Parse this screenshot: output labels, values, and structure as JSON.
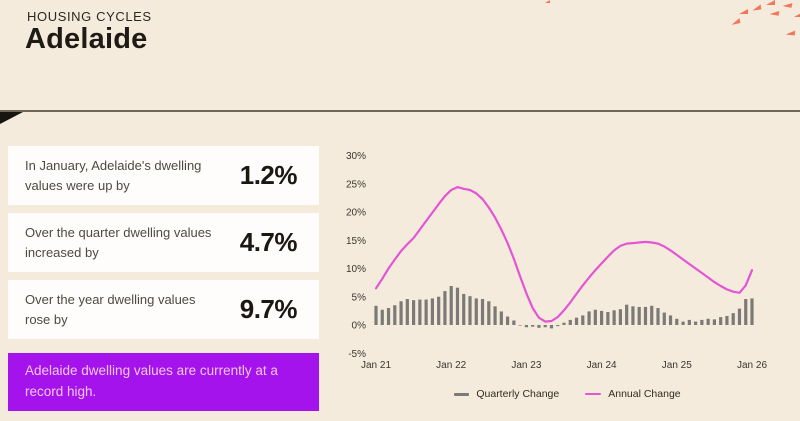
{
  "header": {
    "eyebrow": "HOUSING CYCLES",
    "title": "Adelaide"
  },
  "stats": [
    {
      "label": "In January, Adelaide's dwelling values were up by",
      "value": "1.2%"
    },
    {
      "label": "Over the quarter dwelling values increased by",
      "value": "4.7%"
    },
    {
      "label": "Over the year dwelling values rose by",
      "value": "9.7%"
    }
  ],
  "callout": "Adelaide dwelling values are currently at a record high.",
  "colors": {
    "background": "#f4ebdc",
    "card": "#fefdfb",
    "callout_bg": "#a513ec",
    "callout_text": "#f2c6ef",
    "bar": "#7b7a76",
    "line": "#e455d5",
    "coral_birds": "#f4765a",
    "divider": "#6f665a"
  },
  "chart_data": {
    "type": "bar+line",
    "x_start": "Jan 21",
    "x_interval": "monthly",
    "x_tick_labels": [
      "Jan 21",
      "Jan 22",
      "Jan 23",
      "Jan 24",
      "Jan 25",
      "Jan 26"
    ],
    "y_ticks": [
      30,
      25,
      20,
      15,
      10,
      5,
      0,
      -5
    ],
    "y_tick_labels": [
      "30%",
      "25%",
      "20%",
      "15%",
      "10%",
      "5%",
      "0%",
      "-5%"
    ],
    "ylim": [
      -5,
      30
    ],
    "grid": false,
    "legend": [
      "Quarterly Change",
      "Annual Change"
    ],
    "legend_position": "bottom",
    "series": [
      {
        "name": "Quarterly Change",
        "type": "bar",
        "color": "#7b7a76",
        "values": [
          3.4,
          2.7,
          3.0,
          3.5,
          4.2,
          4.6,
          4.4,
          4.5,
          4.5,
          4.7,
          5.0,
          6.0,
          6.9,
          6.6,
          5.5,
          5.1,
          4.7,
          4.6,
          4.2,
          3.3,
          2.4,
          1.5,
          0.8,
          -0.1,
          -0.4,
          -0.3,
          -0.5,
          -0.4,
          -0.6,
          -0.2,
          0.4,
          0.9,
          1.3,
          1.7,
          2.4,
          2.7,
          2.5,
          2.3,
          2.6,
          2.8,
          3.6,
          3.3,
          3.2,
          3.2,
          3.4,
          3.0,
          2.2,
          1.7,
          1.1,
          0.6,
          0.9,
          0.6,
          0.9,
          1.1,
          1.0,
          1.4,
          1.6,
          2.1,
          2.9,
          4.6,
          4.7
        ]
      },
      {
        "name": "Annual Change",
        "type": "line",
        "color": "#e455d5",
        "values": [
          6.5,
          8.2,
          10.0,
          11.6,
          13.1,
          14.3,
          15.4,
          16.9,
          18.4,
          19.9,
          21.4,
          22.8,
          23.9,
          24.4,
          24.1,
          23.9,
          23.3,
          22.3,
          20.8,
          19.0,
          16.9,
          14.5,
          11.7,
          8.6,
          5.6,
          3.0,
          1.3,
          0.6,
          0.7,
          1.4,
          2.6,
          4.0,
          5.5,
          7.0,
          8.4,
          9.7,
          10.9,
          12.1,
          13.2,
          14.0,
          14.4,
          14.5,
          14.6,
          14.7,
          14.6,
          14.4,
          13.9,
          13.2,
          12.4,
          11.6,
          10.8,
          10.0,
          9.2,
          8.4,
          7.6,
          6.9,
          6.3,
          5.9,
          5.7,
          7.0,
          9.7
        ]
      }
    ]
  }
}
